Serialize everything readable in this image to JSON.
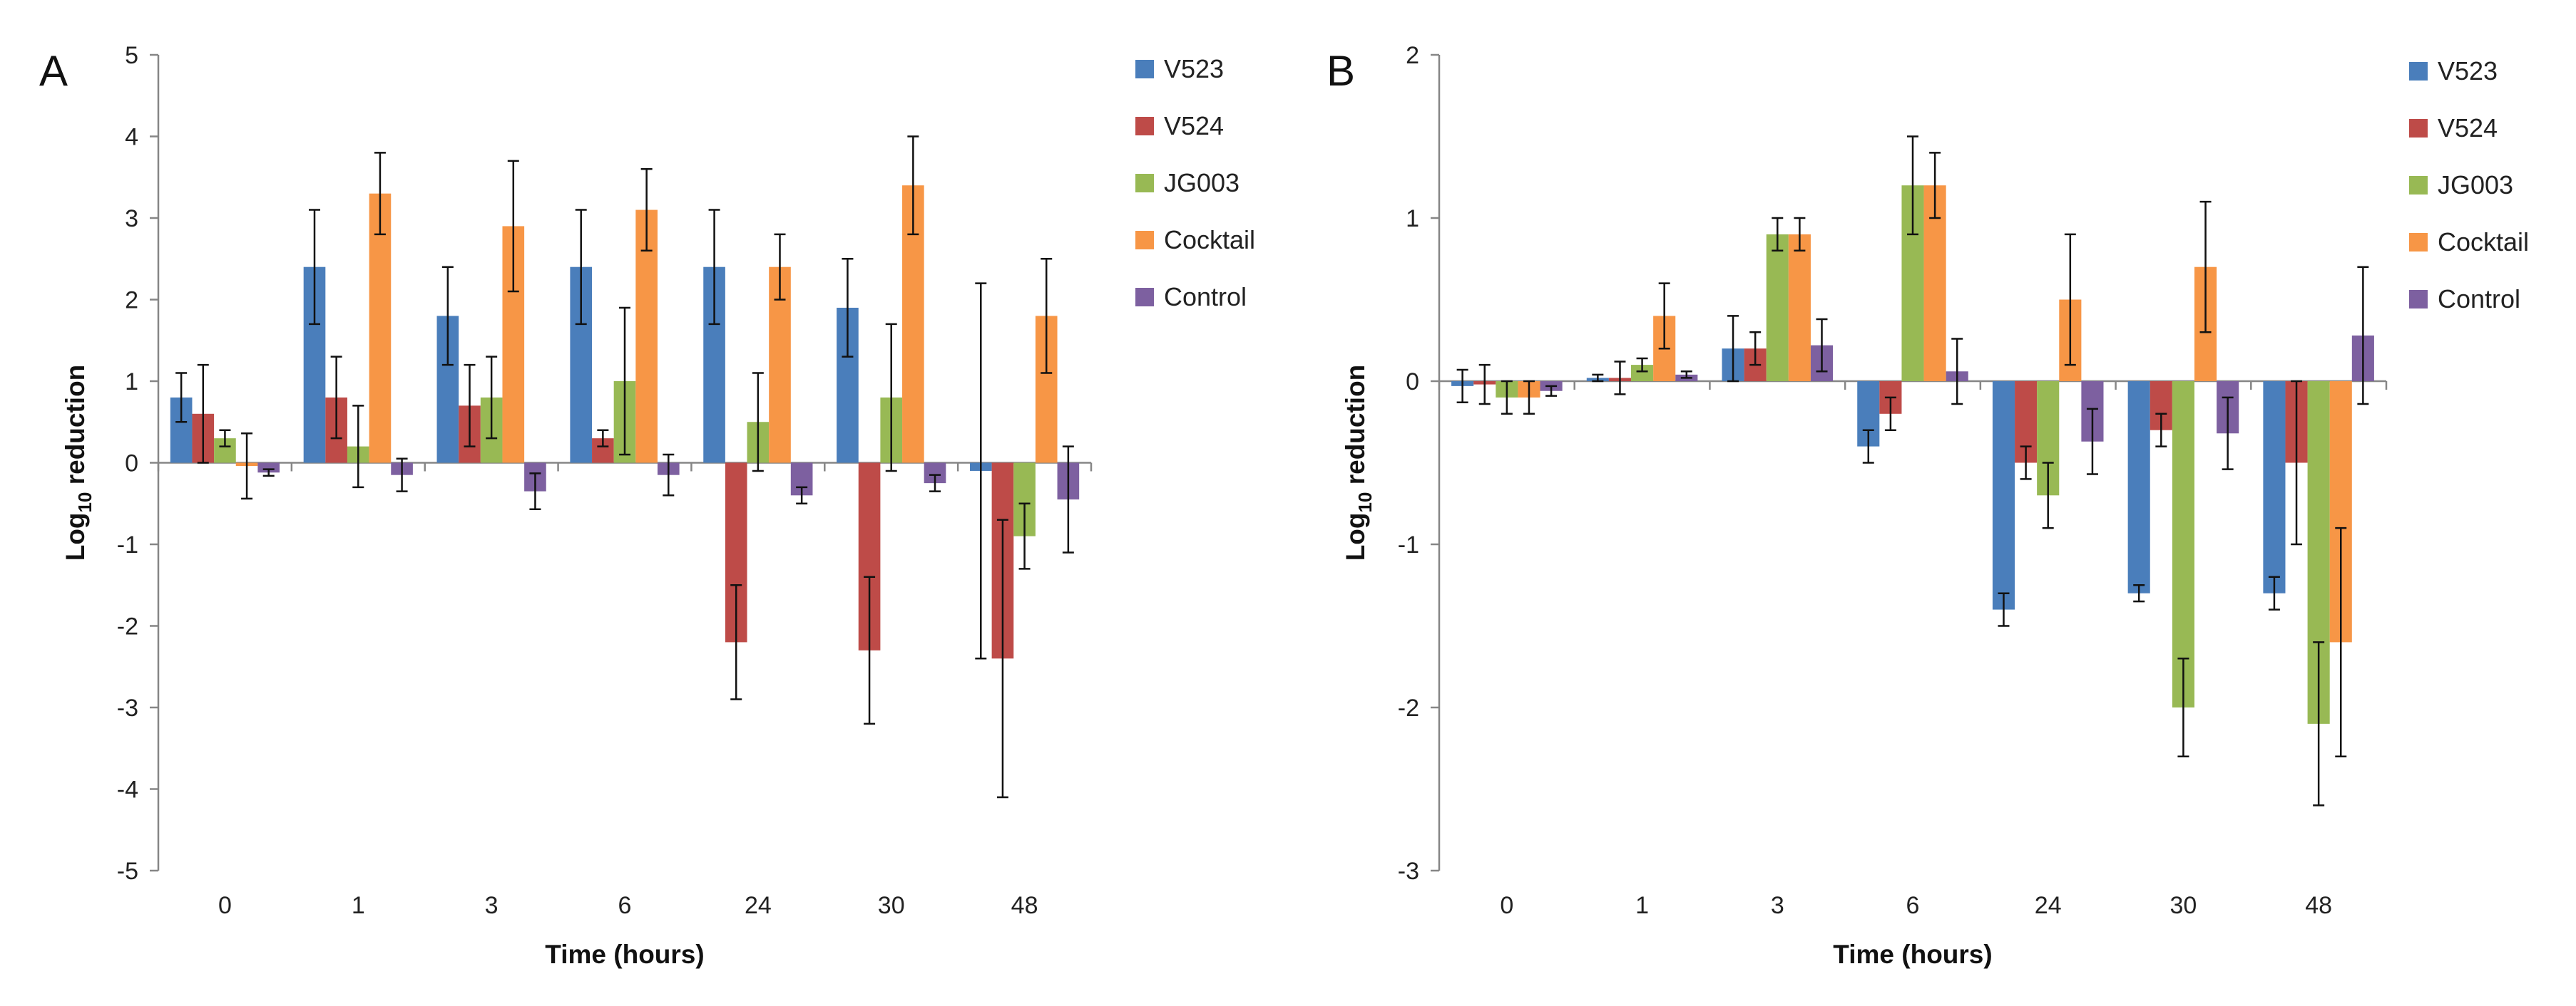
{
  "chart_data": [
    {
      "panel": "A",
      "type": "bar",
      "categories": [
        "0",
        "1",
        "3",
        "6",
        "24",
        "30",
        "48"
      ],
      "xlabel": "Time (hours)",
      "ylabel_main": "Log",
      "ylabel_sub": "10",
      "ylabel_rest": " reduction",
      "ylim": [
        -5,
        5
      ],
      "yticks": [
        "-5",
        "-4",
        "-3",
        "-2",
        "-1",
        "0",
        "1",
        "2",
        "3",
        "4",
        "5"
      ],
      "series": [
        {
          "name": "V523",
          "color": "#4a7ebb",
          "values": [
            0.8,
            2.4,
            1.8,
            2.4,
            2.4,
            1.9,
            -0.1
          ],
          "errors": [
            0.3,
            0.7,
            0.6,
            0.7,
            0.7,
            0.6,
            2.3
          ]
        },
        {
          "name": "V524",
          "color": "#be4b48",
          "values": [
            0.6,
            0.8,
            0.7,
            0.3,
            -2.2,
            -2.3,
            -2.4
          ],
          "errors": [
            0.6,
            0.5,
            0.5,
            0.1,
            0.7,
            0.9,
            1.7
          ]
        },
        {
          "name": "JG003",
          "color": "#98b954",
          "values": [
            0.3,
            0.2,
            0.8,
            1.0,
            0.5,
            0.8,
            -0.9
          ],
          "errors": [
            0.1,
            0.5,
            0.5,
            0.9,
            0.6,
            0.9,
            0.4
          ]
        },
        {
          "name": "Cocktail",
          "color": "#f79646",
          "values": [
            -0.04,
            3.3,
            2.9,
            3.1,
            2.4,
            3.4,
            1.8
          ],
          "errors": [
            0.4,
            0.5,
            0.8,
            0.5,
            0.4,
            0.6,
            0.7
          ]
        },
        {
          "name": "Control",
          "color": "#7d60a0",
          "values": [
            -0.12,
            -0.15,
            -0.35,
            -0.15,
            -0.4,
            -0.25,
            -0.45
          ],
          "errors": [
            0.04,
            0.2,
            0.22,
            0.25,
            0.1,
            0.1,
            0.65
          ]
        }
      ]
    },
    {
      "panel": "B",
      "type": "bar",
      "categories": [
        "0",
        "1",
        "3",
        "6",
        "24",
        "30",
        "48"
      ],
      "xlabel": "Time (hours)",
      "ylabel_main": "Log",
      "ylabel_sub": "10",
      "ylabel_rest": " reduction",
      "ylim": [
        -3,
        2
      ],
      "yticks": [
        "-3",
        "-2",
        "-1",
        "0",
        "1",
        "2"
      ],
      "series": [
        {
          "name": "V523",
          "color": "#4a7ebb",
          "values": [
            -0.03,
            0.02,
            0.2,
            -0.4,
            -1.4,
            -1.3,
            -1.3
          ],
          "errors": [
            0.1,
            0.02,
            0.2,
            0.1,
            0.1,
            0.05,
            0.1
          ]
        },
        {
          "name": "V524",
          "color": "#be4b48",
          "values": [
            -0.02,
            0.02,
            0.2,
            -0.2,
            -0.5,
            -0.3,
            -0.5
          ],
          "errors": [
            0.12,
            0.1,
            0.1,
            0.1,
            0.1,
            0.1,
            0.5
          ]
        },
        {
          "name": "JG003",
          "color": "#98b954",
          "values": [
            -0.1,
            0.1,
            0.9,
            1.2,
            -0.7,
            -2.0,
            -2.1
          ],
          "errors": [
            0.1,
            0.04,
            0.1,
            0.3,
            0.2,
            0.3,
            0.5
          ]
        },
        {
          "name": "Cocktail",
          "color": "#f79646",
          "values": [
            -0.1,
            0.4,
            0.9,
            1.2,
            0.5,
            0.7,
            -1.6
          ],
          "errors": [
            0.1,
            0.2,
            0.1,
            0.2,
            0.4,
            0.4,
            0.7
          ]
        },
        {
          "name": "Control",
          "color": "#7d60a0",
          "values": [
            -0.06,
            0.04,
            0.22,
            0.06,
            -0.37,
            -0.32,
            0.28
          ],
          "errors": [
            0.03,
            0.02,
            0.16,
            0.2,
            0.2,
            0.22,
            0.42
          ]
        }
      ]
    }
  ]
}
